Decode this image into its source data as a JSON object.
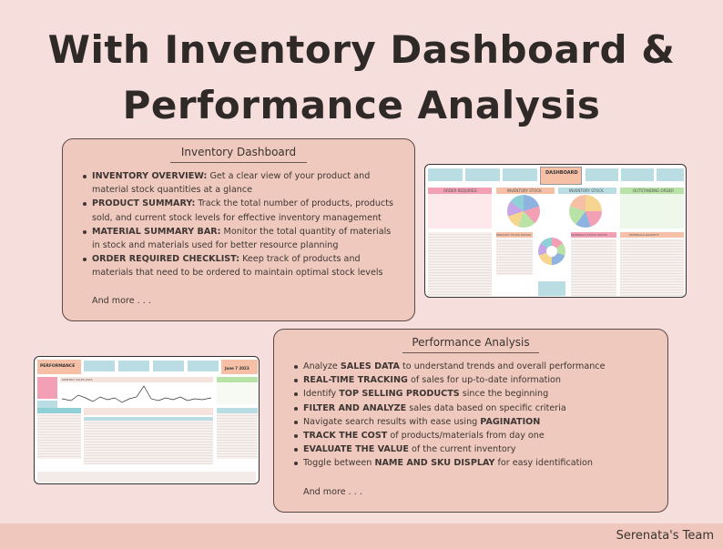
{
  "title_line1": "With Inventory Dashboard &",
  "title_line2": "Performance Analysis",
  "inventory_card": {
    "heading": "Inventory Dashboard",
    "bullets": [
      {
        "bold": "INVENTORY OVERVIEW:",
        "text": " Get a clear view of your product and material stock quantities at a glance"
      },
      {
        "bold": "PRODUCT SUMMARY:",
        "text": " Track the total number of products, products sold, and current stock levels for effective inventory management"
      },
      {
        "bold": "MATERIAL SUMMARY BAR:",
        "text": " Monitor the total quantity of materials in stock and materials used for better resource planning"
      },
      {
        "bold": "ORDER REQUIRED CHECKLIST:",
        "text": " Keep track of products and materials that need to be ordered to maintain optimal stock levels"
      }
    ],
    "more": "And more . . ."
  },
  "performance_card": {
    "heading": "Performance Analysis",
    "bullets": [
      {
        "pre": "Analyze ",
        "bold": "SALES DATA",
        "post": " to understand trends and overall performance"
      },
      {
        "pre": "",
        "bold": "REAL-TIME TRACKING",
        "post": " of sales for up-to-date information"
      },
      {
        "pre": "Identify ",
        "bold": "TOP SELLING PRODUCTS",
        "post": " since the beginning"
      },
      {
        "pre": "",
        "bold": "FILTER AND ANALYZE",
        "post": " sales data based on specific criteria"
      },
      {
        "pre": "Navigate search results with ease using ",
        "bold": "PAGINATION",
        "post": ""
      },
      {
        "pre": "",
        "bold": "TRACK THE COST",
        "post": " of products/materials from day one"
      },
      {
        "pre": "",
        "bold": "EVALUATE THE VALUE",
        "post": " of the current inventory"
      },
      {
        "pre": "Toggle between ",
        "bold": "NAME AND SKU DISPLAY",
        "post": " for easy identification"
      }
    ],
    "more": "And more . . ."
  },
  "dashboard_screenshot": {
    "header": "DASHBOARD",
    "order_required": "ORDER REQUIRED",
    "pie1": "INVENTORY STOCK",
    "pie2": "INVENTORY STOCK",
    "outstanding": "OUTSTANDING ORDER",
    "product_stock": "PRODUCT STOCK STATUS",
    "material_stock": "MATERIALS STOCK STATUS",
    "product_quantity": "PRODUCT QUANTITY",
    "material_quantity": "MATERIALS QUANTITY"
  },
  "performance_screenshot": {
    "header": "PERFORMANCE",
    "date": "June 7 2023",
    "monthly": "MONTHLY SALES DATA"
  },
  "colors": {
    "background": "#f5dedb",
    "card": "#efc9bd",
    "teal": "#8fd0d6",
    "pink": "#f3a0b5",
    "green": "#b9e3a6",
    "peach": "#f5c0a6"
  },
  "footer": "Serenata's Team"
}
